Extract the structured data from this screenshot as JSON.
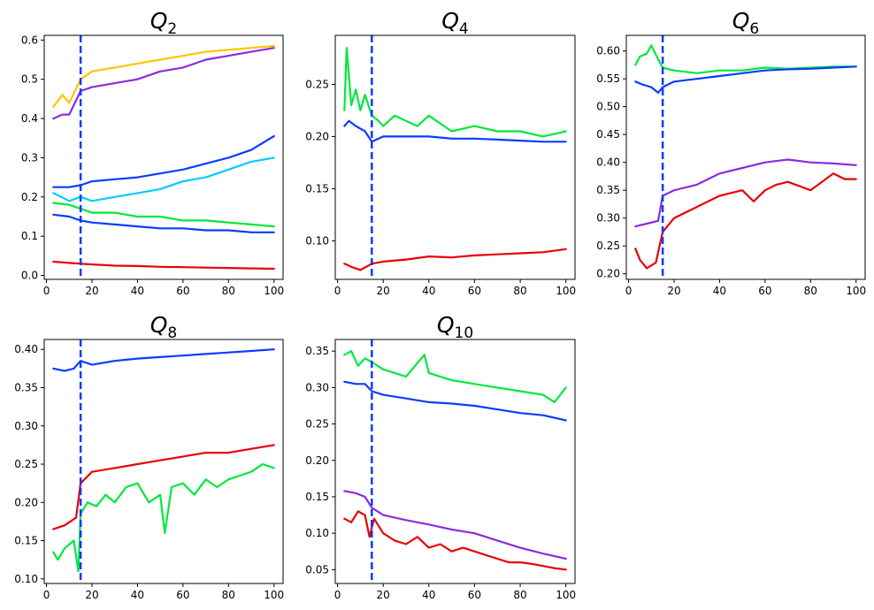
{
  "figure": {
    "background": "#ffffff",
    "colors": {
      "yellow": "#ffc400",
      "purple": "#8a2be2",
      "blue": "#0a3cff",
      "cyan": "#00ccff",
      "green": "#00e83c",
      "red": "#e8000b",
      "marker": "#0a3cff"
    }
  },
  "chart_data": [
    {
      "type": "line",
      "title_main": "Q",
      "title_sub": "2",
      "xlim": [
        -1,
        104
      ],
      "ylim": [
        -0.01,
        0.612
      ],
      "xticks": [
        0,
        20,
        40,
        60,
        80,
        100
      ],
      "yticks": [
        0.0,
        0.1,
        0.2,
        0.3,
        0.4,
        0.5,
        0.6
      ],
      "ytick_decimals": 1,
      "vline_x": 15,
      "vline_style": "dashed",
      "series": [
        {
          "color": "yellow",
          "x": [
            3,
            7,
            10,
            15,
            20,
            30,
            40,
            50,
            60,
            70,
            80,
            90,
            100
          ],
          "y": [
            0.43,
            0.46,
            0.44,
            0.5,
            0.52,
            0.53,
            0.54,
            0.55,
            0.56,
            0.57,
            0.575,
            0.58,
            0.585
          ]
        },
        {
          "color": "purple",
          "x": [
            3,
            7,
            10,
            15,
            20,
            30,
            40,
            50,
            60,
            70,
            80,
            90,
            100
          ],
          "y": [
            0.4,
            0.41,
            0.41,
            0.47,
            0.48,
            0.49,
            0.5,
            0.52,
            0.53,
            0.55,
            0.56,
            0.57,
            0.58
          ]
        },
        {
          "color": "blue",
          "x": [
            3,
            10,
            15,
            20,
            30,
            40,
            50,
            60,
            70,
            80,
            90,
            100
          ],
          "y": [
            0.225,
            0.225,
            0.23,
            0.24,
            0.245,
            0.25,
            0.26,
            0.27,
            0.285,
            0.3,
            0.32,
            0.355
          ]
        },
        {
          "color": "cyan",
          "x": [
            3,
            10,
            15,
            20,
            30,
            40,
            50,
            60,
            70,
            80,
            90,
            100
          ],
          "y": [
            0.21,
            0.19,
            0.2,
            0.19,
            0.2,
            0.21,
            0.22,
            0.24,
            0.25,
            0.27,
            0.29,
            0.3
          ]
        },
        {
          "color": "green",
          "x": [
            3,
            10,
            15,
            20,
            30,
            40,
            50,
            60,
            70,
            80,
            90,
            100
          ],
          "y": [
            0.185,
            0.18,
            0.17,
            0.16,
            0.16,
            0.15,
            0.15,
            0.14,
            0.14,
            0.135,
            0.13,
            0.125
          ]
        },
        {
          "color": "blue",
          "x": [
            3,
            10,
            15,
            20,
            30,
            40,
            50,
            60,
            70,
            80,
            90,
            100
          ],
          "y": [
            0.155,
            0.15,
            0.14,
            0.135,
            0.13,
            0.125,
            0.12,
            0.12,
            0.115,
            0.115,
            0.11,
            0.11
          ]
        },
        {
          "color": "red",
          "x": [
            3,
            10,
            20,
            30,
            40,
            50,
            60,
            70,
            80,
            90,
            100
          ],
          "y": [
            0.035,
            0.032,
            0.028,
            0.025,
            0.024,
            0.022,
            0.021,
            0.02,
            0.019,
            0.018,
            0.017
          ]
        }
      ]
    },
    {
      "type": "line",
      "title_main": "Q",
      "title_sub": "4",
      "xlim": [
        -1,
        104
      ],
      "ylim": [
        0.063,
        0.297
      ],
      "xticks": [
        0,
        20,
        40,
        60,
        80,
        100
      ],
      "yticks": [
        0.1,
        0.15,
        0.2,
        0.25
      ],
      "ytick_decimals": 2,
      "vline_x": 15,
      "vline_style": "dashed",
      "series": [
        {
          "color": "green",
          "x": [
            3,
            4,
            6,
            8,
            10,
            12,
            15,
            18,
            20,
            25,
            30,
            35,
            40,
            50,
            60,
            70,
            80,
            90,
            100
          ],
          "y": [
            0.225,
            0.285,
            0.23,
            0.245,
            0.225,
            0.24,
            0.22,
            0.215,
            0.21,
            0.22,
            0.215,
            0.21,
            0.22,
            0.205,
            0.21,
            0.205,
            0.205,
            0.2,
            0.205
          ]
        },
        {
          "color": "blue",
          "x": [
            3,
            5,
            8,
            12,
            15,
            20,
            30,
            40,
            50,
            60,
            70,
            80,
            90,
            100
          ],
          "y": [
            0.21,
            0.215,
            0.21,
            0.205,
            0.195,
            0.2,
            0.2,
            0.2,
            0.198,
            0.198,
            0.197,
            0.196,
            0.195,
            0.195
          ]
        },
        {
          "color": "red",
          "x": [
            3,
            6,
            10,
            15,
            20,
            30,
            40,
            50,
            60,
            70,
            80,
            90,
            100
          ],
          "y": [
            0.078,
            0.075,
            0.072,
            0.078,
            0.08,
            0.082,
            0.085,
            0.084,
            0.086,
            0.087,
            0.088,
            0.089,
            0.092
          ]
        }
      ]
    },
    {
      "type": "line",
      "title_main": "Q",
      "title_sub": "6",
      "xlim": [
        -1,
        104
      ],
      "ylim": [
        0.19,
        0.628
      ],
      "xticks": [
        0,
        20,
        40,
        60,
        80,
        100
      ],
      "yticks": [
        0.2,
        0.25,
        0.3,
        0.35,
        0.4,
        0.45,
        0.5,
        0.55,
        0.6
      ],
      "ytick_decimals": 2,
      "vline_x": 15,
      "vline_style": "dashed",
      "series": [
        {
          "color": "green",
          "x": [
            3,
            5,
            8,
            10,
            13,
            15,
            20,
            30,
            40,
            50,
            60,
            70,
            80,
            90,
            100
          ],
          "y": [
            0.575,
            0.59,
            0.595,
            0.61,
            0.585,
            0.57,
            0.565,
            0.56,
            0.565,
            0.565,
            0.57,
            0.568,
            0.57,
            0.572,
            0.572
          ]
        },
        {
          "color": "blue",
          "x": [
            3,
            6,
            10,
            13,
            15,
            20,
            30,
            40,
            50,
            60,
            70,
            80,
            90,
            100
          ],
          "y": [
            0.545,
            0.54,
            0.535,
            0.525,
            0.535,
            0.545,
            0.55,
            0.555,
            0.56,
            0.565,
            0.567,
            0.568,
            0.57,
            0.572
          ]
        },
        {
          "color": "purple",
          "x": [
            3,
            8,
            13,
            15,
            20,
            30,
            40,
            50,
            60,
            70,
            80,
            90,
            100
          ],
          "y": [
            0.285,
            0.29,
            0.295,
            0.34,
            0.35,
            0.36,
            0.38,
            0.39,
            0.4,
            0.405,
            0.4,
            0.398,
            0.395
          ]
        },
        {
          "color": "red",
          "x": [
            3,
            5,
            8,
            12,
            15,
            20,
            25,
            30,
            35,
            40,
            45,
            50,
            55,
            60,
            65,
            70,
            80,
            90,
            95,
            100
          ],
          "y": [
            0.245,
            0.225,
            0.21,
            0.22,
            0.275,
            0.3,
            0.31,
            0.32,
            0.33,
            0.34,
            0.345,
            0.35,
            0.33,
            0.35,
            0.36,
            0.365,
            0.35,
            0.38,
            0.37,
            0.37
          ]
        }
      ]
    },
    {
      "type": "line",
      "title_main": "Q",
      "title_sub": "8",
      "xlim": [
        -1,
        104
      ],
      "ylim": [
        0.094,
        0.413
      ],
      "xticks": [
        0,
        20,
        40,
        60,
        80,
        100
      ],
      "yticks": [
        0.1,
        0.15,
        0.2,
        0.25,
        0.3,
        0.35,
        0.4
      ],
      "ytick_decimals": 2,
      "vline_x": 15,
      "vline_style": "dashed",
      "series": [
        {
          "color": "blue",
          "x": [
            3,
            8,
            12,
            15,
            20,
            30,
            40,
            50,
            60,
            70,
            80,
            90,
            100
          ],
          "y": [
            0.375,
            0.372,
            0.375,
            0.385,
            0.38,
            0.385,
            0.388,
            0.39,
            0.392,
            0.394,
            0.396,
            0.398,
            0.4
          ]
        },
        {
          "color": "red",
          "x": [
            3,
            8,
            13,
            15,
            20,
            30,
            40,
            50,
            60,
            70,
            80,
            90,
            100
          ],
          "y": [
            0.165,
            0.17,
            0.18,
            0.225,
            0.24,
            0.245,
            0.25,
            0.255,
            0.26,
            0.265,
            0.265,
            0.27,
            0.275
          ]
        },
        {
          "color": "green",
          "x": [
            3,
            5,
            8,
            12,
            14,
            15,
            18,
            22,
            26,
            30,
            35,
            40,
            45,
            50,
            52,
            55,
            60,
            65,
            70,
            75,
            80,
            85,
            90,
            95,
            100
          ],
          "y": [
            0.135,
            0.125,
            0.14,
            0.15,
            0.11,
            0.185,
            0.2,
            0.195,
            0.21,
            0.2,
            0.22,
            0.225,
            0.2,
            0.21,
            0.16,
            0.22,
            0.225,
            0.21,
            0.23,
            0.22,
            0.23,
            0.235,
            0.24,
            0.25,
            0.245
          ]
        }
      ]
    },
    {
      "type": "line",
      "title_main": "Q",
      "title_sub": "10",
      "xlim": [
        -1,
        104
      ],
      "ylim": [
        0.031,
        0.366
      ],
      "xticks": [
        0,
        20,
        40,
        60,
        80,
        100
      ],
      "yticks": [
        0.05,
        0.1,
        0.15,
        0.2,
        0.25,
        0.3,
        0.35
      ],
      "ytick_decimals": 2,
      "vline_x": 15,
      "vline_style": "dashed",
      "series": [
        {
          "color": "green",
          "x": [
            3,
            6,
            9,
            12,
            15,
            20,
            30,
            38,
            40,
            50,
            60,
            70,
            80,
            90,
            95,
            100
          ],
          "y": [
            0.345,
            0.35,
            0.33,
            0.34,
            0.335,
            0.325,
            0.315,
            0.345,
            0.32,
            0.31,
            0.305,
            0.3,
            0.295,
            0.29,
            0.28,
            0.3
          ]
        },
        {
          "color": "blue",
          "x": [
            3,
            8,
            12,
            15,
            20,
            30,
            40,
            50,
            60,
            70,
            80,
            90,
            100
          ],
          "y": [
            0.308,
            0.305,
            0.305,
            0.295,
            0.29,
            0.285,
            0.28,
            0.278,
            0.275,
            0.27,
            0.265,
            0.262,
            0.255
          ]
        },
        {
          "color": "purple",
          "x": [
            3,
            8,
            12,
            15,
            20,
            30,
            40,
            50,
            60,
            70,
            80,
            90,
            100
          ],
          "y": [
            0.158,
            0.155,
            0.15,
            0.135,
            0.125,
            0.118,
            0.112,
            0.105,
            0.1,
            0.09,
            0.08,
            0.072,
            0.065
          ]
        },
        {
          "color": "red",
          "x": [
            3,
            6,
            9,
            12,
            14,
            16,
            20,
            25,
            30,
            35,
            40,
            45,
            50,
            55,
            60,
            65,
            70,
            75,
            80,
            85,
            90,
            95,
            100
          ],
          "y": [
            0.12,
            0.115,
            0.13,
            0.125,
            0.095,
            0.12,
            0.1,
            0.09,
            0.085,
            0.095,
            0.08,
            0.085,
            0.075,
            0.08,
            0.075,
            0.07,
            0.065,
            0.06,
            0.06,
            0.058,
            0.055,
            0.052,
            0.05
          ]
        }
      ]
    }
  ]
}
